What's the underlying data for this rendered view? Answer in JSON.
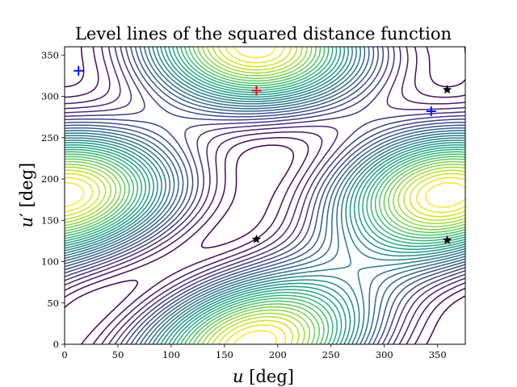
{
  "chart_data": {
    "type": "contour",
    "title": "Level lines of the squared distance function",
    "xlabel": "u [deg]",
    "ylabel": "u′ [deg]",
    "xlim": [
      0,
      376
    ],
    "ylim": [
      0,
      360
    ],
    "xticks": [
      "0",
      "50",
      "100",
      "150",
      "200",
      "250",
      "300",
      "350"
    ],
    "yticks": [
      "0",
      "50",
      "100",
      "150",
      "200",
      "250",
      "300",
      "350"
    ],
    "grid": false,
    "colormap": "viridis",
    "n_levels": 30,
    "maxima": [
      {
        "x": 180,
        "y": 307,
        "marker": "plus",
        "color": "#e8001a"
      }
    ],
    "minima": [
      {
        "x": 13,
        "y": 331,
        "marker": "plus",
        "color": "#0011ff"
      },
      {
        "x": 344,
        "y": 282,
        "marker": "plus",
        "color": "#0011ff"
      }
    ],
    "saddles": [
      {
        "x": 180,
        "y": 127,
        "marker": "star",
        "color": "#000000"
      },
      {
        "x": 359,
        "y": 126,
        "marker": "star",
        "color": "#000000"
      },
      {
        "x": 359,
        "y": 308,
        "marker": "star",
        "color": "#000000"
      }
    ]
  }
}
